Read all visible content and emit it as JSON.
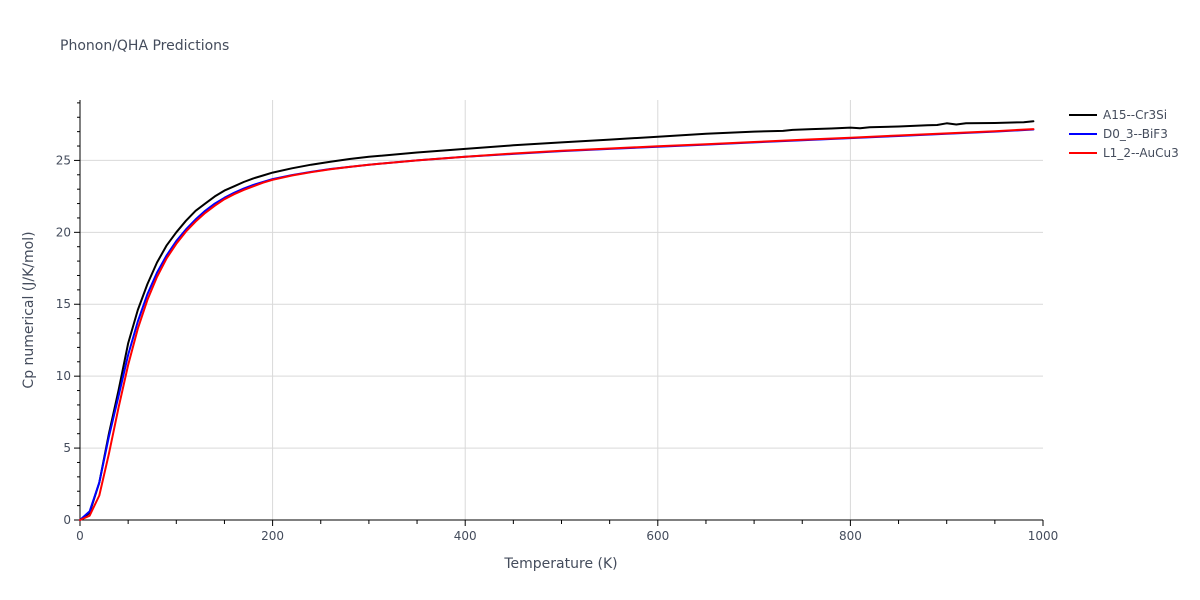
{
  "chart_data": {
    "type": "line",
    "title": "Phonon/QHA Predictions",
    "xlabel": "Temperature (K)",
    "ylabel": "Cp numerical (J/K/mol)",
    "xlim": [
      0,
      1000
    ],
    "ylim": [
      0,
      29.2
    ],
    "xticks": [
      0,
      200,
      400,
      600,
      800,
      1000
    ],
    "xtick_labels": [
      "0",
      "200",
      "400",
      "600",
      "800",
      "1000"
    ],
    "yticks": [
      0,
      5,
      10,
      15,
      20,
      25
    ],
    "ytick_labels": [
      "0",
      "5",
      "10",
      "15",
      "20",
      "25"
    ],
    "grid": true,
    "legend_position": "top-right",
    "series": [
      {
        "name": "A15--Cr3Si",
        "color": "#000000",
        "x": [
          0,
          10,
          20,
          30,
          40,
          50,
          60,
          70,
          80,
          90,
          100,
          110,
          120,
          130,
          140,
          150,
          160,
          170,
          180,
          190,
          200,
          220,
          240,
          260,
          280,
          300,
          350,
          400,
          450,
          500,
          550,
          600,
          650,
          700,
          730,
          740,
          760,
          780,
          800,
          810,
          820,
          850,
          880,
          890,
          900,
          910,
          920,
          950,
          980,
          990
        ],
        "y": [
          0,
          0.5,
          2.6,
          6.0,
          9.0,
          12.3,
          14.6,
          16.4,
          17.9,
          19.1,
          20.0,
          20.8,
          21.5,
          22.0,
          22.5,
          22.9,
          23.2,
          23.5,
          23.75,
          23.95,
          24.15,
          24.45,
          24.7,
          24.9,
          25.1,
          25.25,
          25.55,
          25.8,
          26.05,
          26.25,
          26.45,
          26.65,
          26.85,
          27.0,
          27.05,
          27.12,
          27.18,
          27.22,
          27.28,
          27.24,
          27.3,
          27.36,
          27.44,
          27.46,
          27.58,
          27.5,
          27.58,
          27.6,
          27.66,
          27.72
        ]
      },
      {
        "name": "D0_3--BiF3",
        "color": "#0000ff",
        "x": [
          0,
          10,
          20,
          30,
          40,
          50,
          60,
          70,
          80,
          90,
          100,
          110,
          120,
          130,
          140,
          150,
          160,
          170,
          180,
          190,
          200,
          220,
          240,
          260,
          280,
          300,
          350,
          400,
          450,
          500,
          550,
          600,
          650,
          700,
          750,
          800,
          850,
          900,
          950,
          990
        ],
        "y": [
          0,
          0.6,
          2.6,
          5.8,
          8.6,
          11.5,
          13.8,
          15.7,
          17.2,
          18.4,
          19.4,
          20.2,
          20.9,
          21.5,
          22.0,
          22.4,
          22.75,
          23.05,
          23.3,
          23.5,
          23.7,
          23.98,
          24.2,
          24.4,
          24.55,
          24.7,
          25.0,
          25.25,
          25.45,
          25.65,
          25.8,
          25.95,
          26.1,
          26.25,
          26.4,
          26.55,
          26.7,
          26.85,
          27.0,
          27.15
        ]
      },
      {
        "name": "L1_2--AuCu3",
        "color": "#ff0000",
        "x": [
          0,
          10,
          20,
          30,
          40,
          50,
          60,
          70,
          80,
          90,
          100,
          110,
          120,
          130,
          140,
          150,
          160,
          170,
          180,
          190,
          200,
          220,
          240,
          260,
          280,
          300,
          350,
          400,
          450,
          500,
          550,
          600,
          650,
          700,
          750,
          800,
          850,
          900,
          950,
          990
        ],
        "y": [
          0,
          0.3,
          1.7,
          4.6,
          7.8,
          10.8,
          13.3,
          15.3,
          16.9,
          18.2,
          19.2,
          20.05,
          20.75,
          21.35,
          21.85,
          22.3,
          22.65,
          22.95,
          23.2,
          23.45,
          23.65,
          23.95,
          24.18,
          24.38,
          24.55,
          24.7,
          25.0,
          25.25,
          25.48,
          25.67,
          25.83,
          25.98,
          26.13,
          26.28,
          26.43,
          26.58,
          26.73,
          26.88,
          27.03,
          27.18
        ]
      }
    ]
  }
}
